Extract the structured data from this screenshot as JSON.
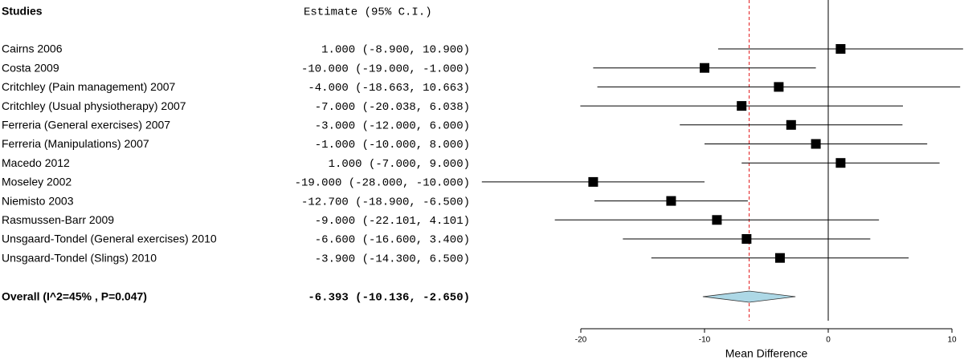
{
  "chart_data": {
    "type": "forest",
    "column_titles": [
      "Studies",
      "Estimate (95% C.I.)"
    ],
    "categories": [
      "Cairns 2006",
      "Costa 2009",
      "Critchley (Pain management) 2007",
      "Critchley (Usual physiotherapy) 2007",
      "Ferreria (General exercises) 2007",
      "Ferreria (Manipulations) 2007",
      "Macedo 2012",
      "Moseley 2002",
      "Niemisto 2003",
      "Rasmussen-Barr 2009",
      "Unsgaard-Tondel (General exercises) 2010",
      "Unsgaard-Tondel (Slings) 2010"
    ],
    "values": [
      1.0,
      -10.0,
      -4.0,
      -7.0,
      -3.0,
      -1.0,
      1.0,
      -19.0,
      -12.7,
      -9.0,
      -6.6,
      -3.9
    ],
    "lower": [
      -8.9,
      -19.0,
      -18.663,
      -20.038,
      -12.0,
      -10.0,
      -7.0,
      -28.0,
      -18.9,
      -22.101,
      -16.6,
      -14.3
    ],
    "upper": [
      10.9,
      -1.0,
      10.663,
      6.038,
      6.0,
      8.0,
      9.0,
      -10.0,
      -6.5,
      4.101,
      3.4,
      6.5
    ],
    "value_labels": [
      "1.000 (-8.900, 10.900)",
      "-10.000 (-19.000, -1.000)",
      "-4.000 (-18.663, 10.663)",
      "-7.000 (-20.038, 6.038)",
      "-3.000 (-12.000, 6.000)",
      "-1.000 (-10.000, 8.000)",
      "1.000 (-7.000, 9.000)",
      "-19.000 (-28.000, -10.000)",
      "-12.700 (-18.900, -6.500)",
      "-9.000 (-22.101, 4.101)",
      "-6.600 (-16.600, 3.400)",
      "-3.900 (-14.300, 6.500)"
    ],
    "overall": {
      "label": "Overall (I^2=45% , P=0.047)",
      "value": -6.393,
      "lower": -10.136,
      "upper": -2.65,
      "value_label": "-6.393 (-10.136, -2.650)",
      "color": "#add8e6",
      "line_color": "#e31a1c"
    },
    "reference_line": 0,
    "xlim": [
      -20,
      10
    ],
    "xticks": [
      -20,
      -10,
      0,
      10
    ],
    "xlabel": "Mean Difference"
  }
}
